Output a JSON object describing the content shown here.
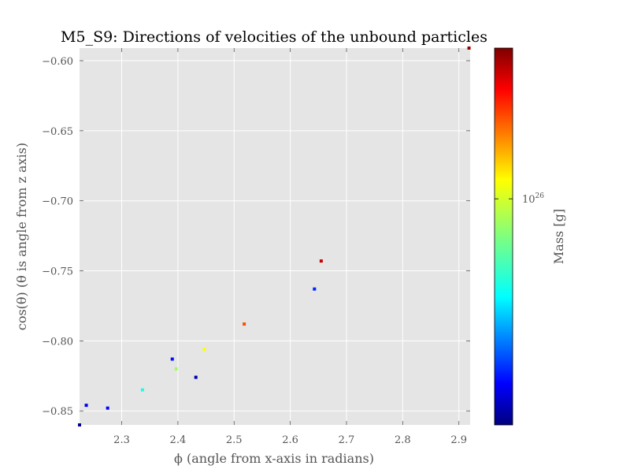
{
  "chart_data": {
    "type": "scatter",
    "title": "M5_S9: Directions of velocities of the unbound particles",
    "xlabel": "ϕ (angle from x-axis in radians)",
    "ylabel": "cos(θ) (θ is angle from z axis)",
    "xlim": [
      2.225,
      2.92
    ],
    "ylim": [
      -0.86,
      -0.591
    ],
    "xticks": [
      2.3,
      2.4,
      2.5,
      2.6,
      2.7,
      2.8,
      2.9
    ],
    "xtick_labels": [
      "2.3",
      "2.4",
      "2.5",
      "2.6",
      "2.7",
      "2.8",
      "2.9"
    ],
    "yticks": [
      -0.6,
      -0.65,
      -0.7,
      -0.75,
      -0.8,
      -0.85
    ],
    "ytick_labels": [
      "−0.60",
      "−0.65",
      "−0.70",
      "−0.75",
      "−0.80",
      "−0.85"
    ],
    "grid": true,
    "colorbar": {
      "label": "Mass [g]",
      "colormap": "jet",
      "scale": "log",
      "tick_label_base": "10",
      "tick_label_exp": "26",
      "tick_fraction": 0.6
    },
    "points": [
      {
        "x": 2.225,
        "y": -0.86,
        "c": 0.02
      },
      {
        "x": 2.237,
        "y": -0.846,
        "c": 0.1
      },
      {
        "x": 2.275,
        "y": -0.848,
        "c": 0.13
      },
      {
        "x": 2.337,
        "y": -0.835,
        "c": 0.4
      },
      {
        "x": 2.39,
        "y": -0.813,
        "c": 0.14
      },
      {
        "x": 2.397,
        "y": -0.82,
        "c": 0.53
      },
      {
        "x": 2.432,
        "y": -0.826,
        "c": 0.05
      },
      {
        "x": 2.447,
        "y": -0.806,
        "c": 0.62
      },
      {
        "x": 2.518,
        "y": -0.788,
        "c": 0.8
      },
      {
        "x": 2.643,
        "y": -0.763,
        "c": 0.16
      },
      {
        "x": 2.655,
        "y": -0.743,
        "c": 0.93
      },
      {
        "x": 2.918,
        "y": -0.591,
        "c": 0.97
      }
    ]
  }
}
